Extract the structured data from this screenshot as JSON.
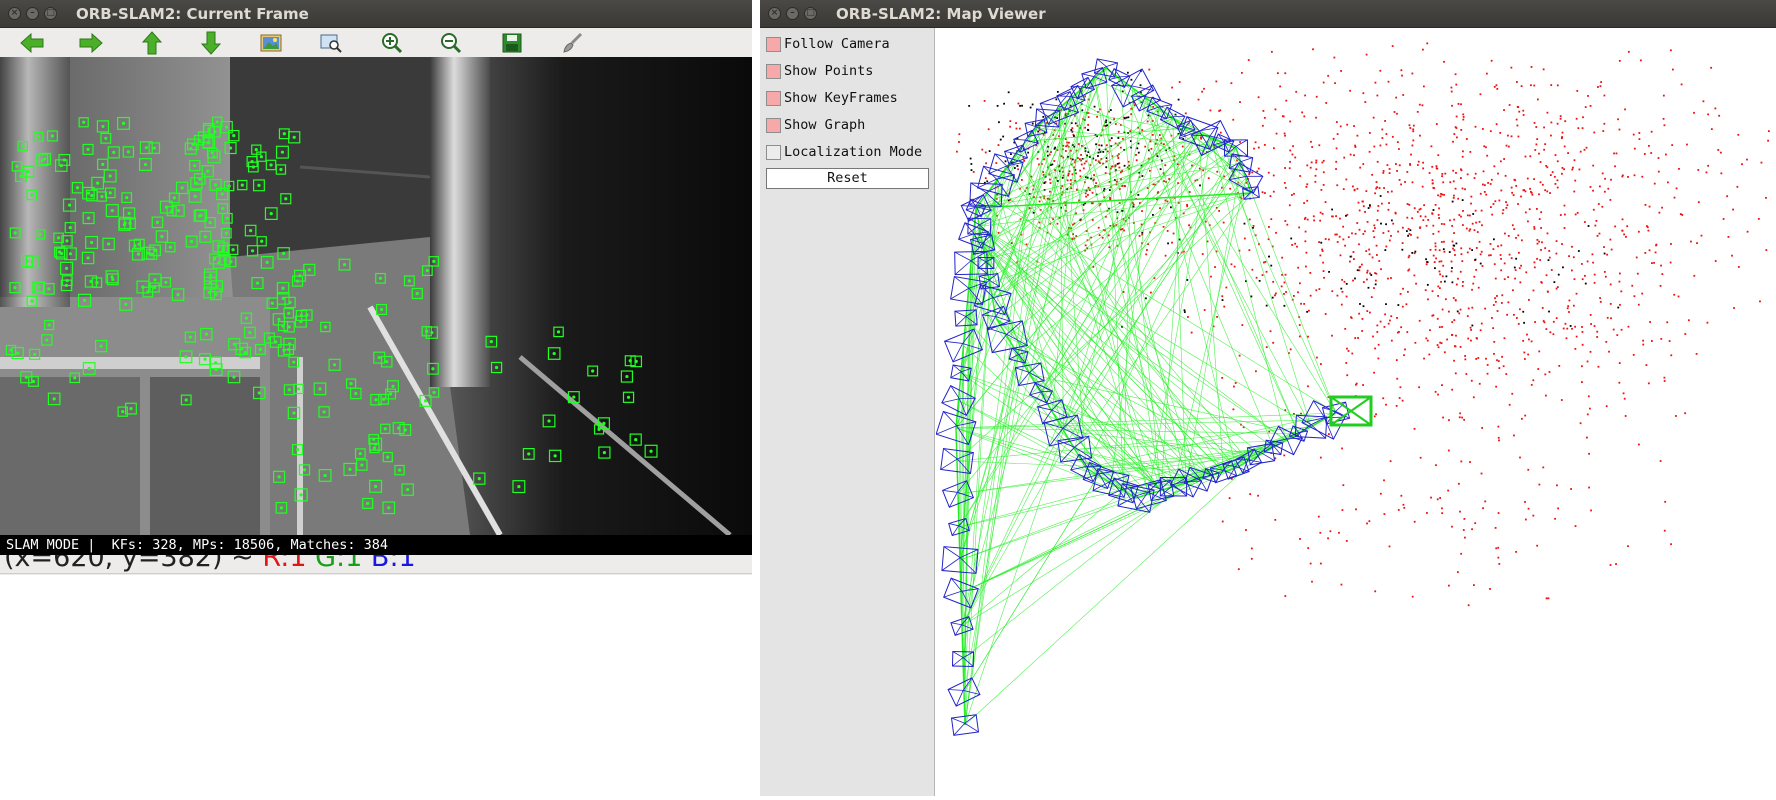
{
  "current_frame_window": {
    "title": "ORB-SLAM2: Current Frame",
    "toolbar": [
      {
        "icon": "arrow-left-icon",
        "color": "#4caf2a"
      },
      {
        "icon": "arrow-right-icon",
        "color": "#4caf2a"
      },
      {
        "icon": "arrow-up-icon",
        "color": "#4caf2a"
      },
      {
        "icon": "arrow-down-icon",
        "color": "#4caf2a"
      },
      {
        "icon": "image-icon"
      },
      {
        "icon": "zoom-rect-icon"
      },
      {
        "icon": "zoom-in-icon"
      },
      {
        "icon": "zoom-out-icon"
      },
      {
        "icon": "save-icon"
      },
      {
        "icon": "brush-icon"
      }
    ],
    "status": "SLAM MODE |  KFs: 328, MPs: 18506, Matches: 384",
    "pixel_info": {
      "coords": "(x=620, y=382) ~",
      "r": "R:1",
      "g": "G:1",
      "b": "B:1"
    },
    "feature_color": "#22ff22"
  },
  "map_viewer_window": {
    "title": "ORB-SLAM2: Map Viewer",
    "options": [
      {
        "label": "Follow Camera",
        "checked": true
      },
      {
        "label": "Show Points",
        "checked": true
      },
      {
        "label": "Show KeyFrames",
        "checked": true
      },
      {
        "label": "Show Graph",
        "checked": true
      },
      {
        "label": "Localization Mode",
        "checked": false
      }
    ],
    "reset_label": "Reset",
    "colors": {
      "keyframe": "#2222cc",
      "graph": "#22ee22",
      "map_point": "#ee1111",
      "ref_point": "#000000",
      "current_camera": "#22cc22"
    }
  }
}
